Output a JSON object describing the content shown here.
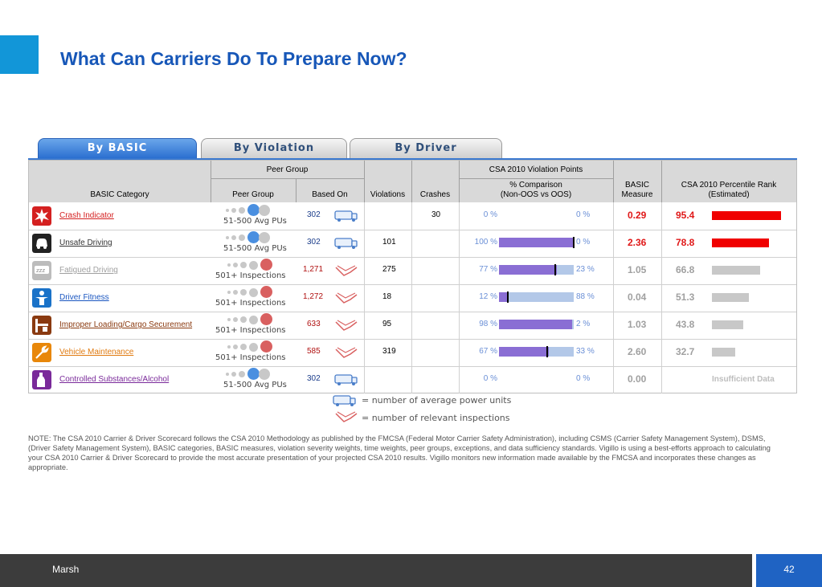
{
  "slide": {
    "title": "What Can Carriers Do To Prepare Now?"
  },
  "tabs": [
    {
      "label": "By BASIC",
      "active": true
    },
    {
      "label": "By Violation",
      "active": false
    },
    {
      "label": "By Driver",
      "active": false
    }
  ],
  "headers": {
    "basic_category": "BASIC Category",
    "peer_group_group": "Peer Group",
    "peer_group": "Peer Group",
    "based_on": "Based On",
    "violations": "Violations",
    "crashes": "Crashes",
    "csa_points": "CSA 2010 Violation Points",
    "comparison_l1": "% Comparison",
    "comparison_l2": "(Non-OOS vs OOS)",
    "basic_measure_l1": "BASIC",
    "basic_measure_l2": "Measure",
    "rank_l1": "CSA 2010 Percentile Rank",
    "rank_l2": "(Estimated)"
  },
  "rows": [
    {
      "category": "Crash Indicator",
      "icon": "crash-icon",
      "category_color": "#d42020",
      "peer_text": "51-500 Avg PUs",
      "peer_level": 3,
      "peer_color": "#4a8fe0",
      "based_on": "302",
      "based_on_type": "truck",
      "based_color": "#1a3c8a",
      "violations": "",
      "crashes": "30",
      "non_oos_pct": "0 %",
      "oos_pct": "0 %",
      "non_oos": 0,
      "mark": null,
      "measure": "0.29",
      "measure_color": "#e01818",
      "rank": "95.4",
      "rank_value": 95.4,
      "rank_color": "#e01818",
      "bar_color": "#f00000"
    },
    {
      "category": "Unsafe Driving",
      "icon": "steering-icon",
      "category_color": "#333333",
      "peer_text": "51-500 Avg PUs",
      "peer_level": 3,
      "peer_color": "#4a8fe0",
      "based_on": "302",
      "based_on_type": "truck",
      "based_color": "#1a3c8a",
      "violations": "101",
      "crashes": "",
      "non_oos_pct": "100 %",
      "oos_pct": "0 %",
      "non_oos": 100,
      "mark": 100,
      "measure": "2.36",
      "measure_color": "#e01818",
      "rank": "78.8",
      "rank_value": 78.8,
      "rank_color": "#e01818",
      "bar_color": "#f00000"
    },
    {
      "category": "Fatigued Driving",
      "icon": "fatigue-icon",
      "category_color": "#a0a0a0",
      "peer_text": "501+ Inspections",
      "peer_level": 4,
      "peer_color": "#d96060",
      "based_on": "1,271",
      "based_on_type": "inspection",
      "based_color": "#b01010",
      "violations": "275",
      "crashes": "",
      "non_oos_pct": "77 %",
      "oos_pct": "23 %",
      "non_oos": 77,
      "mark": 75,
      "measure": "1.05",
      "measure_color": "#a0a0a0",
      "rank": "66.8",
      "rank_value": 66.8,
      "rank_color": "#a0a0a0",
      "bar_color": "#c8c8c8"
    },
    {
      "category": "Driver Fitness",
      "icon": "fitness-icon",
      "category_color": "#1a56c0",
      "peer_text": "501+ Inspections",
      "peer_level": 4,
      "peer_color": "#d96060",
      "based_on": "1,272",
      "based_on_type": "inspection",
      "based_color": "#b01010",
      "violations": "18",
      "crashes": "",
      "non_oos_pct": "12 %",
      "oos_pct": "88 %",
      "non_oos": 12,
      "mark": 12,
      "measure": "0.04",
      "measure_color": "#a0a0a0",
      "rank": "51.3",
      "rank_value": 51.3,
      "rank_color": "#a0a0a0",
      "bar_color": "#c8c8c8"
    },
    {
      "category": "Improper Loading/Cargo Securement",
      "icon": "cargo-icon",
      "category_color": "#8a3a10",
      "peer_text": "501+ Inspections",
      "peer_level": 4,
      "peer_color": "#d96060",
      "based_on": "633",
      "based_on_type": "inspection",
      "based_color": "#b01010",
      "violations": "95",
      "crashes": "",
      "non_oos_pct": "98 %",
      "oos_pct": "2 %",
      "non_oos": 98,
      "mark": null,
      "measure": "1.03",
      "measure_color": "#a0a0a0",
      "rank": "43.8",
      "rank_value": 43.8,
      "rank_color": "#a0a0a0",
      "bar_color": "#c8c8c8"
    },
    {
      "category": "Vehicle Maintenance",
      "icon": "wrench-icon",
      "category_color": "#e07a10",
      "peer_text": "501+ Inspections",
      "peer_level": 4,
      "peer_color": "#d96060",
      "based_on": "585",
      "based_on_type": "inspection",
      "based_color": "#b01010",
      "violations": "319",
      "crashes": "",
      "non_oos_pct": "67 %",
      "oos_pct": "33 %",
      "non_oos": 67,
      "mark": 65,
      "measure": "2.60",
      "measure_color": "#a0a0a0",
      "rank": "32.7",
      "rank_value": 32.7,
      "rank_color": "#a0a0a0",
      "bar_color": "#c8c8c8"
    },
    {
      "category": "Controlled Substances/Alcohol",
      "icon": "bottle-icon",
      "category_color": "#7a2a9a",
      "peer_text": "51-500 Avg PUs",
      "peer_level": 3,
      "peer_color": "#4a8fe0",
      "based_on": "302",
      "based_on_type": "truck",
      "based_color": "#1a3c8a",
      "violations": "",
      "crashes": "",
      "non_oos_pct": "0 %",
      "oos_pct": "0 %",
      "non_oos": 0,
      "mark": null,
      "measure": "0.00",
      "measure_color": "#a0a0a0",
      "rank": "",
      "rank_value": null,
      "insufficient": "Insufficient Data",
      "rank_color": "#a0a0a0",
      "bar_color": "#c8c8c8"
    }
  ],
  "legend": {
    "truck": "= number of average power units",
    "inspection": "= number of relevant inspections"
  },
  "note": "NOTE: The CSA 2010 Carrier & Driver Scorecard follows the CSA 2010 Methodology as published by the FMCSA (Federal Motor Carrier Safety Administration), including CSMS (Carrier Safety Management System), DSMS, (Driver Safety Management System), BASIC categories, BASIC measures, violation severity weights, time weights, peer groups, exceptions, and data sufficiency standards. Vigillo is using a best-efforts approach to calculating your CSA 2010 Carrier & Driver Scorecard to provide the most accurate presentation of your projected CSA 2010 results. Vigillo monitors new information made available by the FMCSA and incorporates these changes as appropriate.",
  "footer": {
    "brand": "Marsh",
    "page": "42"
  }
}
